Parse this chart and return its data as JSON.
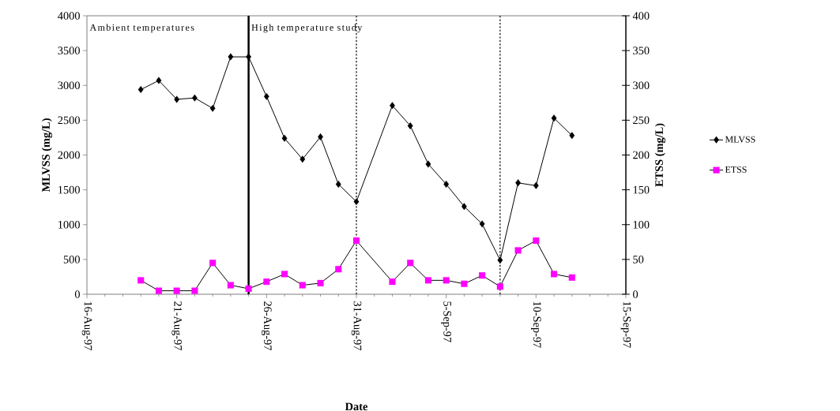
{
  "chart_data": {
    "type": "line",
    "xlabel": "Date",
    "ylabel": "MLVSS (mg/L)",
    "y2label": "ETSS (mg/L)",
    "x": [
      "1997-08-19",
      "1997-08-20",
      "1997-08-21",
      "1997-08-22",
      "1997-08-23",
      "1997-08-24",
      "1997-08-25",
      "1997-08-26",
      "1997-08-27",
      "1997-08-28",
      "1997-08-29",
      "1997-08-30",
      "1997-08-31",
      "1997-09-02",
      "1997-09-03",
      "1997-09-04",
      "1997-09-05",
      "1997-09-06",
      "1997-09-07",
      "1997-09-08",
      "1997-09-09",
      "1997-09-10",
      "1997-09-11",
      "1997-09-12"
    ],
    "series": [
      {
        "name": "MLVSS",
        "color": "#000000",
        "marker": "diamond",
        "axis": "y",
        "values": [
          2940,
          3070,
          2800,
          2820,
          2670,
          3410,
          3410,
          2840,
          2240,
          1940,
          2260,
          1580,
          1330,
          2710,
          2420,
          1870,
          1580,
          1260,
          1010,
          490,
          1600,
          1560,
          2530,
          2280
        ]
      },
      {
        "name": "ETSS",
        "color": "#ff00ff",
        "marker": "square",
        "axis": "y2",
        "values": [
          20,
          5,
          5,
          5,
          45,
          13,
          8,
          18,
          29,
          13,
          16,
          36,
          77,
          18,
          45,
          20,
          20,
          15,
          27,
          11,
          63,
          77,
          29,
          24
        ]
      }
    ],
    "xlim": [
      "1997-08-16",
      "1997-09-15"
    ],
    "xticks": [
      {
        "value": "1997-08-16",
        "label": "16-Aug-97"
      },
      {
        "value": "1997-08-21",
        "label": "21-Aug-97"
      },
      {
        "value": "1997-08-26",
        "label": "26-Aug-97"
      },
      {
        "value": "1997-08-31",
        "label": "31-Aug-97"
      },
      {
        "value": "1997-09-05",
        "label": "5-Sep-97"
      },
      {
        "value": "1997-09-10",
        "label": "10-Sep-97"
      },
      {
        "value": "1997-09-15",
        "label": "15-Sep-97"
      }
    ],
    "ylim": [
      0,
      4000
    ],
    "yticks": [
      0,
      500,
      1000,
      1500,
      2000,
      2500,
      3000,
      3500,
      4000
    ],
    "y2lim": [
      0,
      400
    ],
    "y2ticks": [
      0,
      50,
      100,
      150,
      200,
      250,
      300,
      350,
      400
    ],
    "ref_lines": [
      {
        "axis": "x",
        "value": "1997-08-25",
        "line_style": "solid",
        "color": "#000000"
      },
      {
        "axis": "x",
        "value": "1997-08-31",
        "line_style": "dotted",
        "color": "#000000"
      },
      {
        "axis": "x",
        "value": "1997-09-08",
        "line_style": "dotted",
        "color": "#000000"
      }
    ],
    "annotations": [
      "Ambient temperatures",
      "High temperature study"
    ],
    "legend": "right",
    "grid": false
  }
}
